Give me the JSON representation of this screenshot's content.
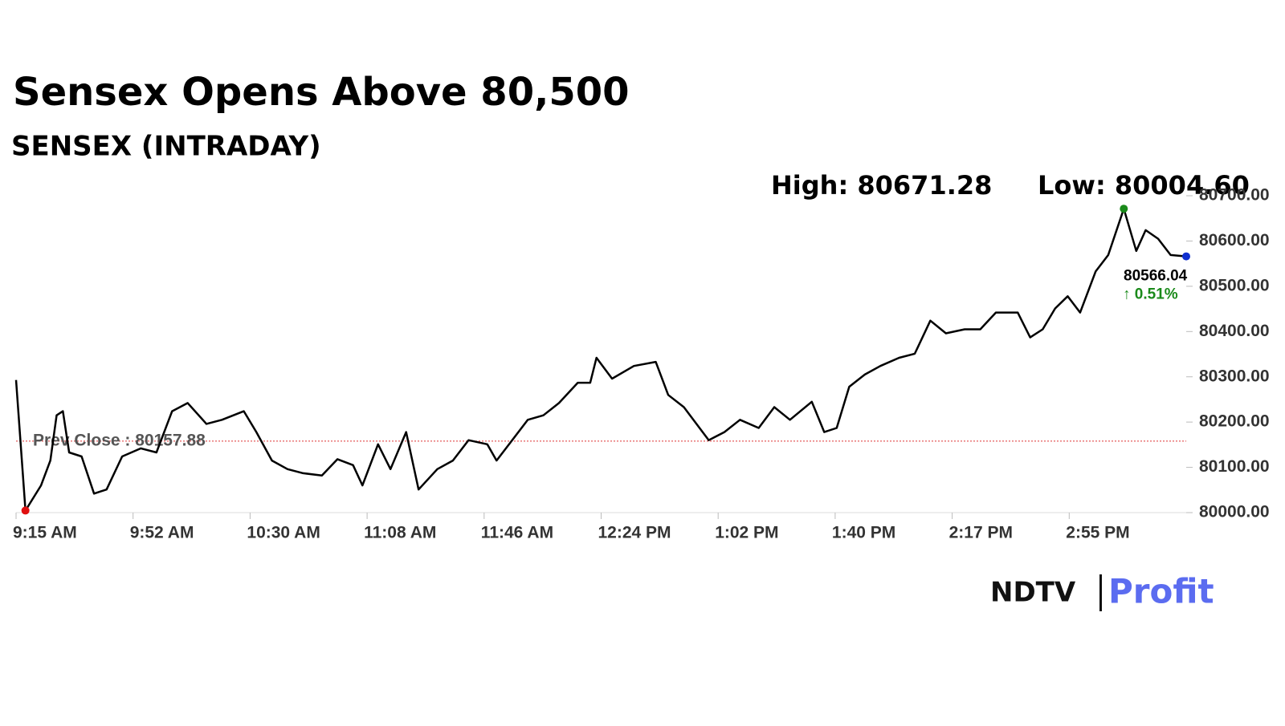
{
  "chart_data": {
    "type": "line",
    "title": "Sensex Opens Above 80,500",
    "subtitle": "SENSEX (INTRADAY)",
    "high_label": "High: 80671.28",
    "low_label": "Low: 80004.60",
    "high": {
      "x": 910,
      "value": 80671.28
    },
    "low": {
      "x": 558,
      "value": 80004.6
    },
    "prev_close": {
      "value": 80157.88,
      "label": "Prev Close : 80157.88"
    },
    "last": {
      "x": 930,
      "value": 80566.04,
      "label": "80566.04",
      "change": "↑ 0.51%"
    },
    "logo": {
      "left": "NDTV",
      "right": "Profit"
    },
    "color": "#000000",
    "x": [
      555,
      558,
      563,
      566,
      568,
      570,
      572,
      576,
      580,
      584,
      589,
      595,
      600,
      605,
      610,
      616,
      621,
      628,
      632,
      637,
      642,
      647,
      653,
      658,
      663,
      666,
      671,
      675,
      680,
      684,
      690,
      695,
      700,
      706,
      709,
      713,
      719,
      724,
      729,
      735,
      739,
      741,
      746,
      753,
      760,
      764,
      769,
      777,
      782,
      787,
      793,
      798,
      803,
      810,
      814,
      818,
      822,
      827,
      832,
      838,
      843,
      848,
      853,
      859,
      864,
      869,
      876,
      880,
      884,
      888,
      892,
      896,
      901,
      905,
      910,
      914,
      917,
      921,
      925,
      930
    ],
    "values": [
      80293,
      80004.6,
      80060,
      80115,
      80215,
      80224,
      80133,
      80124,
      80042,
      80051,
      80124,
      80142,
      80133,
      80224,
      80242,
      80196,
      80205,
      80224,
      80178,
      80115,
      80096,
      80087,
      80082,
      80118,
      80105,
      80060,
      80151,
      80096,
      80178,
      80051,
      80096,
      80115,
      80160,
      80151,
      80115,
      80151,
      80205,
      80215,
      80242,
      80287,
      80287,
      80342,
      80296,
      80324,
      80333,
      80260,
      80233,
      80160,
      80178,
      80205,
      80187,
      80233,
      80205,
      80245,
      80178,
      80187,
      80278,
      80305,
      80324,
      80342,
      80351,
      80424,
      80396,
      80405,
      80405,
      80442,
      80442,
      80387,
      80405,
      80451,
      80478,
      80442,
      80533,
      80569,
      80671.28,
      80578,
      80624,
      80605,
      80569,
      80566.04
    ],
    "xlim": [
      555,
      930
    ],
    "xticks": [
      {
        "value": 555,
        "label": "9:15 AM"
      },
      {
        "value": 592.5,
        "label": "9:52 AM"
      },
      {
        "value": 630,
        "label": "10:30 AM"
      },
      {
        "value": 667.5,
        "label": "11:08 AM"
      },
      {
        "value": 705,
        "label": "11:46 AM"
      },
      {
        "value": 742.5,
        "label": "12:24 PM"
      },
      {
        "value": 780,
        "label": "1:02 PM"
      },
      {
        "value": 817.5,
        "label": "1:40 PM"
      },
      {
        "value": 855,
        "label": "2:17 PM"
      },
      {
        "value": 892.5,
        "label": "2:55 PM"
      }
    ],
    "ylim": [
      80000,
      80700
    ],
    "yticks": [
      {
        "value": 80000,
        "label": "80000.00"
      },
      {
        "value": 80100,
        "label": "80100.00"
      },
      {
        "value": 80200,
        "label": "80200.00"
      },
      {
        "value": 80300,
        "label": "80300.00"
      },
      {
        "value": 80400,
        "label": "80400.00"
      },
      {
        "value": 80500,
        "label": "80500.00"
      },
      {
        "value": 80600,
        "label": "80600.00"
      },
      {
        "value": 80700,
        "label": "80700.00"
      }
    ]
  }
}
